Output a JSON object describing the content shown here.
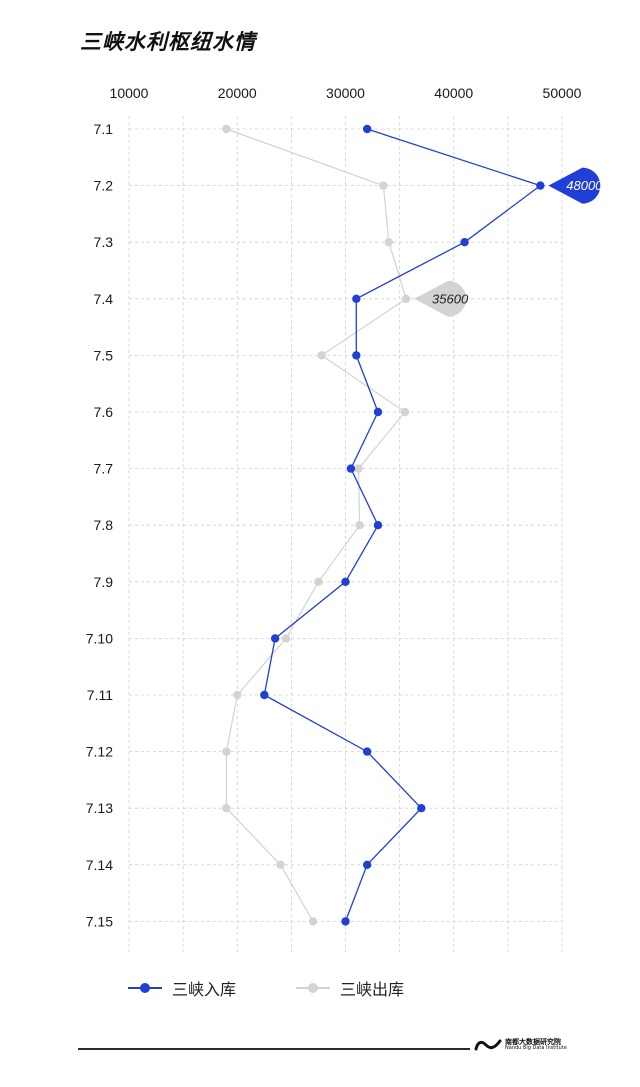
{
  "page_title": "三峡水利枢纽水情",
  "colors": {
    "inflow": "#1f3fd6",
    "outflow": "#d3d3d3",
    "grid": "#cfcfcf"
  },
  "chart_data": {
    "type": "line",
    "orientation": "horizontal-values",
    "title": "三峡水利枢纽水情",
    "xlabel": "",
    "ylabel": "",
    "xlim": [
      10000,
      50000
    ],
    "x_ticks": [
      "10000",
      "20000",
      "30000",
      "40000",
      "50000"
    ],
    "categories": [
      "7.1",
      "7.2",
      "7.3",
      "7.4",
      "7.5",
      "7.6",
      "7.7",
      "7.8",
      "7.9",
      "7.10",
      "7.11",
      "7.12",
      "7.13",
      "7.14",
      "7.15"
    ],
    "series": [
      {
        "name": "三峡入库",
        "values": [
          32000,
          48000,
          41000,
          31000,
          31000,
          33000,
          30500,
          33000,
          30000,
          23500,
          22500,
          32000,
          37000,
          32000,
          30000
        ]
      },
      {
        "name": "三峡出库",
        "values": [
          19000,
          33500,
          34000,
          35600,
          27800,
          35500,
          31200,
          31300,
          27500,
          24500,
          20000,
          19000,
          19000,
          24000,
          27000
        ]
      }
    ],
    "annotations": [
      {
        "series": 0,
        "index": 1,
        "label": "48000"
      },
      {
        "series": 1,
        "index": 3,
        "label": "35600"
      }
    ],
    "grid": true,
    "legend": "bottom-left"
  },
  "footer": {
    "logo_cn": "南都大数据研究院",
    "logo_en": "Nandu Big Data Institute"
  }
}
